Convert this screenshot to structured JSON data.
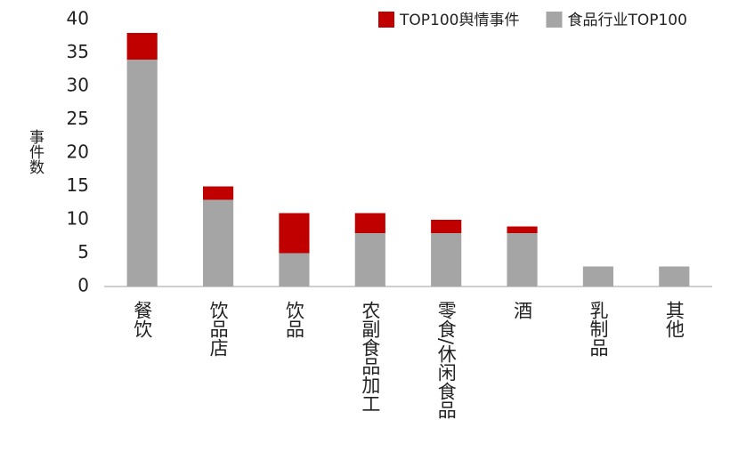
{
  "chart_data": {
    "type": "stacked-bar",
    "y_label": "事件数",
    "categories": [
      "餐饮",
      "饮品店",
      "饮品",
      "农副食品加工",
      "零食/休闲食品",
      "酒",
      "乳制品",
      "其他"
    ],
    "series": [
      {
        "name": "食品行业TOP100",
        "color": "#a5a5a5",
        "values": [
          34,
          13,
          5,
          8,
          8,
          8,
          3,
          3
        ]
      },
      {
        "name": "TOP100舆情事件",
        "color": "#c00000",
        "values": [
          4,
          2,
          6,
          3,
          2,
          1,
          0,
          0
        ]
      }
    ],
    "ylim": [
      0,
      40
    ],
    "yticks": [
      0,
      5,
      10,
      15,
      20,
      25,
      30,
      35,
      40
    ],
    "grid": false,
    "legend": "top-right"
  }
}
